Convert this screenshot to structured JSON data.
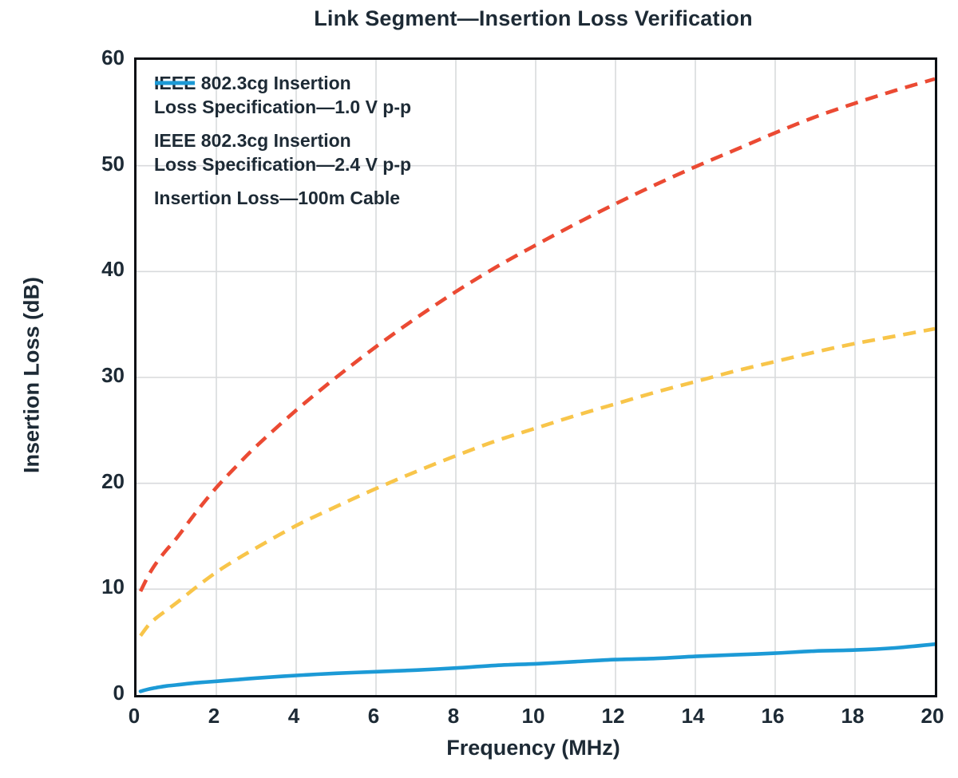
{
  "chart_data": {
    "type": "line",
    "title": "Link Segment—Insertion Loss Verification",
    "xlabel": "Frequency (MHz)",
    "ylabel": "Insertion Loss (dB)",
    "xlim": [
      0,
      20
    ],
    "ylim": [
      0,
      60
    ],
    "xticks": [
      0,
      2,
      4,
      6,
      8,
      10,
      12,
      14,
      16,
      18,
      20
    ],
    "yticks": [
      0,
      10,
      20,
      30,
      40,
      50,
      60
    ],
    "grid": true,
    "grid_color": "#d8dadc",
    "axis_color": "#0b0f14",
    "text_color": "#1d2a35",
    "legend_position": "top-left-inside",
    "x": [
      0.1,
      0.3,
      0.5,
      0.75,
      1,
      1.5,
      2,
      2.5,
      3,
      4,
      5,
      6,
      7,
      8,
      9,
      10,
      11,
      12,
      13,
      14,
      15,
      16,
      17,
      18,
      19,
      20
    ],
    "series": [
      {
        "name": "IEEE 802.3cg Insertion Loss Specification—1.0 V p-p",
        "legend_lines": [
          "IEEE 802.3cg Insertion",
          "Loss Specification—1.0 V p-p"
        ],
        "color": "#F8C54A",
        "style": "dashed",
        "values": [
          5.6,
          6.6,
          7.3,
          8.0,
          8.7,
          10.2,
          11.6,
          12.8,
          13.9,
          16.0,
          17.8,
          19.5,
          21.1,
          22.6,
          24.0,
          25.2,
          26.4,
          27.5,
          28.6,
          29.6,
          30.6,
          31.5,
          32.4,
          33.2,
          33.9,
          34.6
        ]
      },
      {
        "name": "IEEE 802.3cg Insertion Loss Specification—2.4 V p-p",
        "legend_lines": [
          "IEEE 802.3cg Insertion",
          "Loss Specification—2.4 V p-p"
        ],
        "color": "#EB4A33",
        "style": "dashed",
        "values": [
          9.8,
          11.3,
          12.5,
          13.7,
          14.8,
          17.3,
          19.6,
          21.6,
          23.5,
          26.9,
          30.0,
          32.9,
          35.6,
          38.1,
          40.4,
          42.5,
          44.5,
          46.4,
          48.2,
          49.9,
          51.5,
          53.1,
          54.6,
          55.9,
          57.1,
          58.2
        ]
      },
      {
        "name": "Insertion Loss—100m Cable",
        "legend_lines": [
          "Insertion Loss—100m Cable"
        ],
        "color": "#1C9AD6",
        "style": "solid",
        "values": [
          0.35,
          0.55,
          0.7,
          0.85,
          0.95,
          1.15,
          1.3,
          1.45,
          1.6,
          1.85,
          2.05,
          2.2,
          2.35,
          2.55,
          2.8,
          2.95,
          3.15,
          3.35,
          3.45,
          3.65,
          3.8,
          3.95,
          4.15,
          4.25,
          4.45,
          4.8
        ]
      }
    ]
  }
}
